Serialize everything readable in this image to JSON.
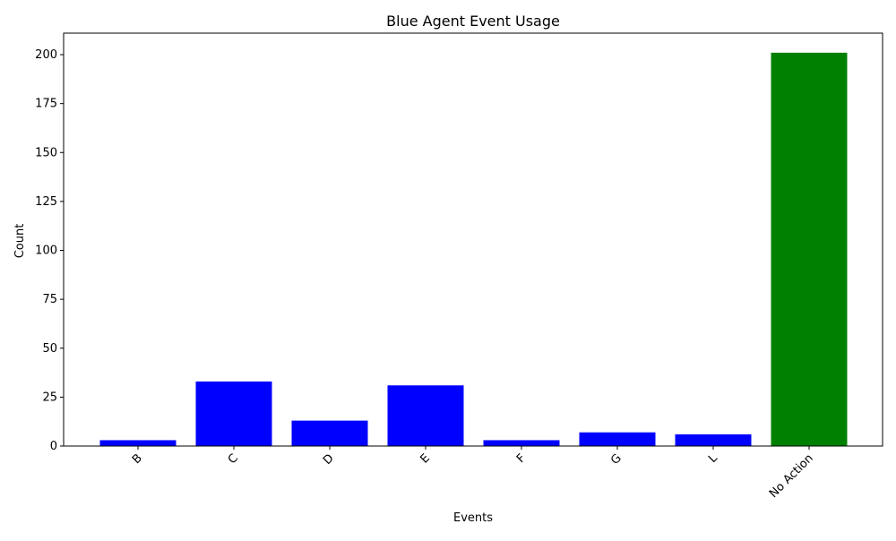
{
  "chart_data": {
    "type": "bar",
    "title": "Blue Agent Event Usage",
    "xlabel": "Events",
    "ylabel": "Count",
    "categories": [
      "B",
      "C",
      "D",
      "E",
      "F",
      "G",
      "L",
      "No Action"
    ],
    "values": [
      3,
      33,
      13,
      31,
      3,
      7,
      6,
      201
    ],
    "colors": [
      "#0000ff",
      "#0000ff",
      "#0000ff",
      "#0000ff",
      "#0000ff",
      "#0000ff",
      "#0000ff",
      "#008000"
    ],
    "ylim": [
      0,
      211
    ],
    "yticks": [
      0,
      25,
      50,
      75,
      100,
      125,
      150,
      175,
      200
    ],
    "xtick_rotation": 45,
    "grid": false,
    "legend": "none"
  }
}
